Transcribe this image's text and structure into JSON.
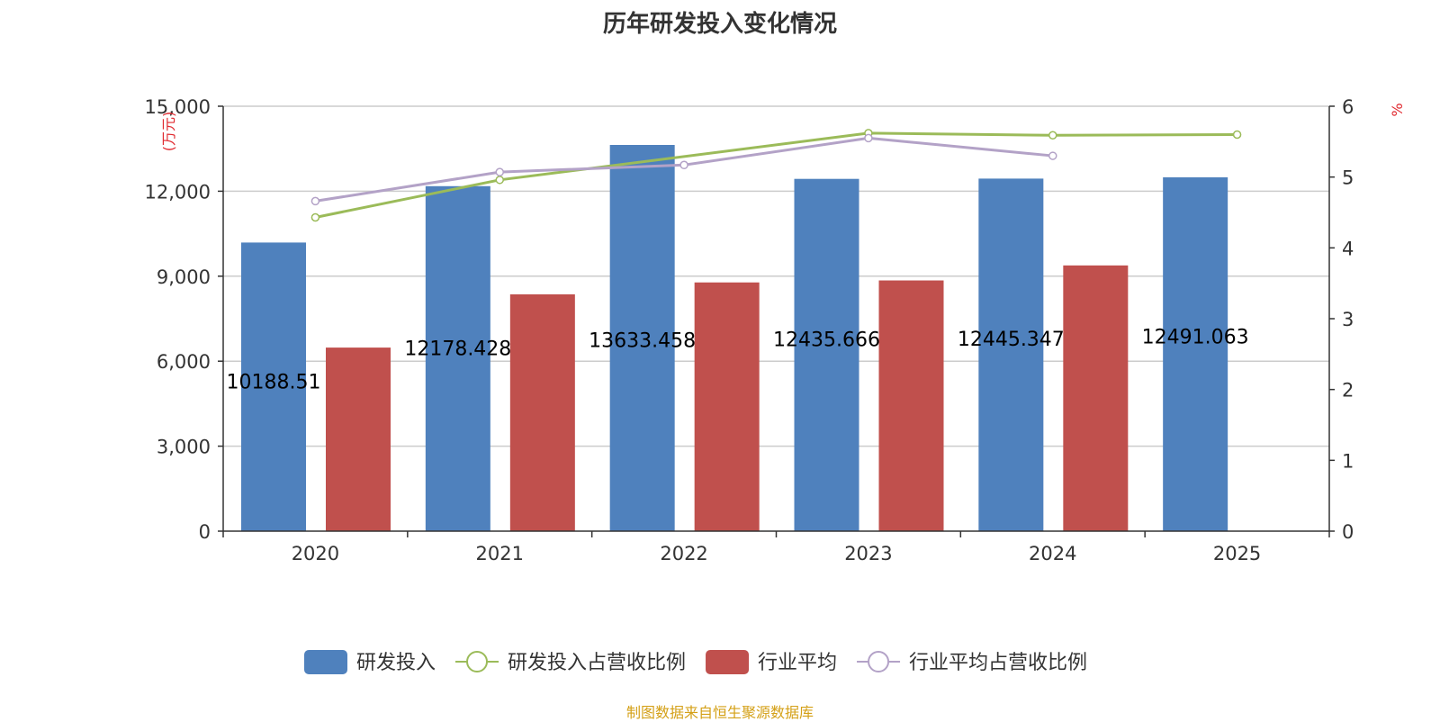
{
  "title": "历年研发投入变化情况",
  "source_note": "制图数据来自恒生聚源数据库",
  "colors": {
    "rd_bar": "#4f81bd",
    "industry_bar": "#c0504d",
    "rd_ratio_line": "#9bbb59",
    "industry_ratio_line": "#b3a2c7",
    "unit_text": "#e0292f",
    "grid": "#cccccc",
    "axis": "#333333"
  },
  "chart_data": {
    "type": "bar",
    "categories": [
      "2020",
      "2021",
      "2022",
      "2023",
      "2024",
      "2025"
    ],
    "left_axis": {
      "unit": "万元",
      "ylim": [
        0,
        15000
      ],
      "ticks": [
        0,
        3000,
        6000,
        9000,
        12000,
        15000
      ],
      "tick_labels": [
        "0",
        "3,000",
        "6,000",
        "9,000",
        "12,000",
        "15,000"
      ]
    },
    "right_axis": {
      "unit": "%",
      "ylim": [
        0,
        6
      ],
      "ticks": [
        0,
        1,
        2,
        3,
        4,
        5,
        6
      ],
      "tick_labels": [
        "0",
        "1",
        "2",
        "3",
        "4",
        "5",
        "6"
      ]
    },
    "grid": true,
    "legend_position": "bottom",
    "series": [
      {
        "name": "研发投入",
        "type": "bar",
        "axis": "left",
        "values": [
          10188.51,
          12178.428,
          13633.458,
          12435.666,
          12445.347,
          12491.063
        ],
        "labels": [
          "10188.51",
          "12178.428",
          "13633.458",
          "12435.666",
          "12445.347",
          "12491.063"
        ]
      },
      {
        "name": "研发投入占营收比例",
        "type": "line",
        "axis": "right",
        "values": [
          4.43,
          4.96,
          null,
          5.62,
          5.59,
          5.6
        ]
      },
      {
        "name": "行业平均",
        "type": "bar",
        "axis": "left",
        "values": [
          6480,
          8360,
          8780,
          8850,
          9380,
          null
        ]
      },
      {
        "name": "行业平均占营收比例",
        "type": "line",
        "axis": "right",
        "values": [
          4.66,
          5.07,
          5.17,
          5.55,
          5.3,
          null
        ]
      }
    ]
  }
}
